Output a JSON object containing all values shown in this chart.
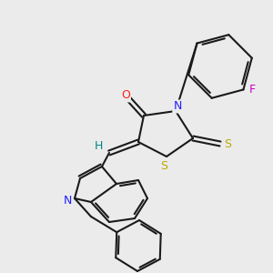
{
  "background_color": "#ebebeb",
  "bond_color": "#1a1a1a",
  "atom_colors": {
    "O": "#ff2020",
    "N": "#2020ff",
    "S": "#bbaa00",
    "F": "#cc00cc",
    "H": "#008888",
    "C": "#1a1a1a"
  },
  "figsize": [
    3.0,
    3.0
  ],
  "dpi": 100,
  "lw": 1.5
}
